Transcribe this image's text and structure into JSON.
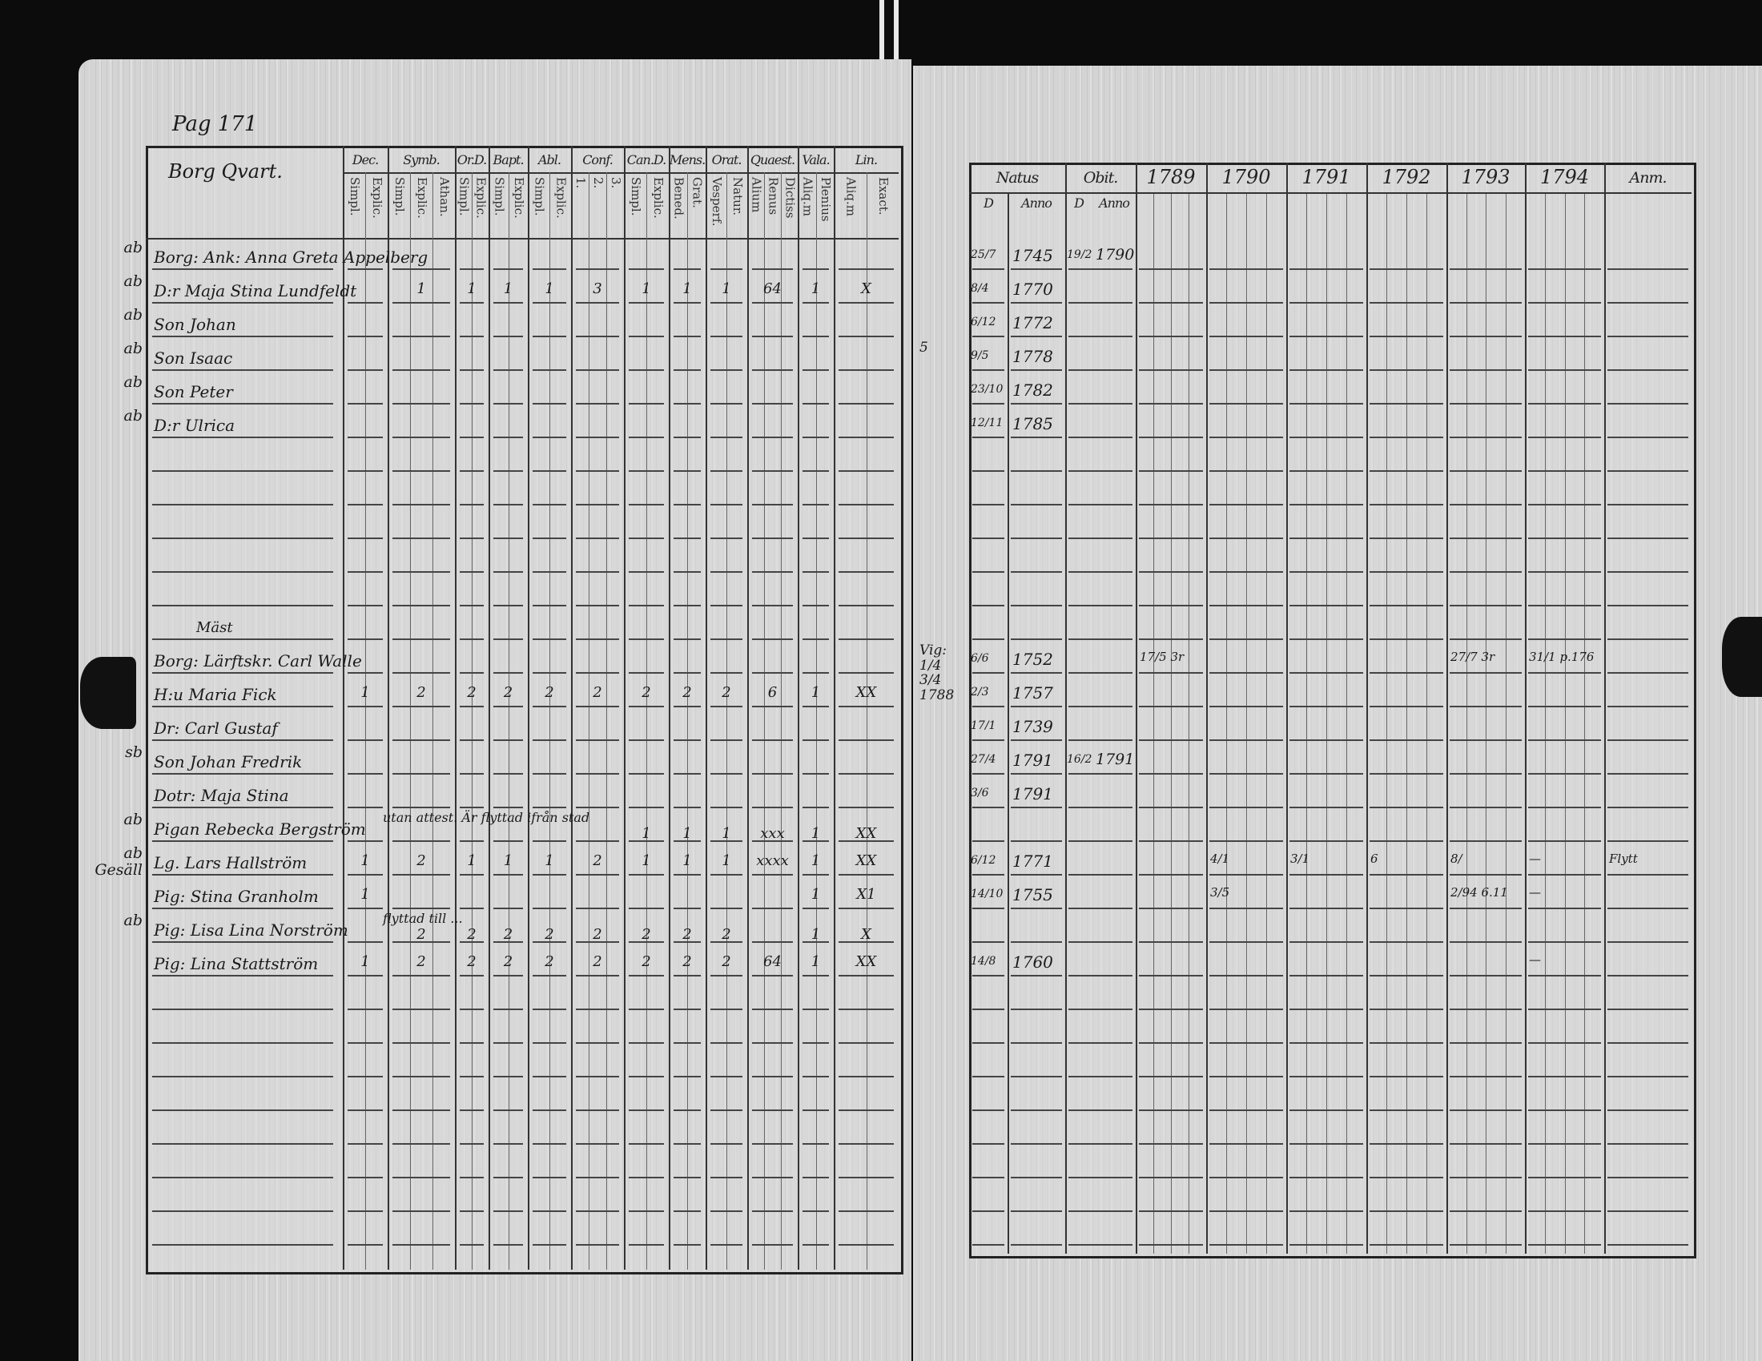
{
  "left_page": {
    "page_ref": "Pag 171",
    "quarter": "Borg Qvart.",
    "group_heading": "Mäst",
    "columns": [
      {
        "label": "Dec.",
        "sub": [
          "Simpl.",
          "Explic."
        ]
      },
      {
        "label": "Symb.",
        "sub": [
          "Simpl.",
          "Explic.",
          "Athan."
        ]
      },
      {
        "label": "Or.D.",
        "sub": [
          "Simpl.",
          "Explic."
        ]
      },
      {
        "label": "Bapt.",
        "sub": [
          "Simpl.",
          "Explic."
        ]
      },
      {
        "label": "Abl.",
        "sub": [
          "Simpl.",
          "Explic."
        ]
      },
      {
        "label": "Conf.",
        "sub": [
          "1.",
          "2.",
          "3."
        ]
      },
      {
        "label": "Can.D.",
        "sub": [
          "Simpl.",
          "Explic."
        ]
      },
      {
        "label": "Mens.",
        "sub": [
          "Bened.",
          "Grat."
        ]
      },
      {
        "label": "Orat.",
        "sub": [
          "Vesperf.",
          "Natur."
        ]
      },
      {
        "label": "Quaest.",
        "sub": [
          "Alium",
          "Renus",
          "Dictiss"
        ]
      },
      {
        "label": "Vala.",
        "sub": [
          "Aliq.m",
          "Plenius"
        ]
      },
      {
        "label": "Lin.",
        "sub": [
          "Aliq.m",
          "Exact."
        ]
      }
    ],
    "rows": [
      {
        "prefix": "ab",
        "name": "Borg: Ank: Anna Greta Appelberg",
        "marks": [
          "",
          "",
          "",
          "",
          "",
          "",
          "",
          "",
          "",
          "",
          "",
          ""
        ]
      },
      {
        "prefix": "ab",
        "name": "D:r Maja Stina Lundfeldt",
        "marks": [
          "",
          "1",
          "1",
          "1",
          "1",
          "3",
          "1",
          "1",
          "1",
          "64",
          "1",
          "X"
        ]
      },
      {
        "prefix": "ab",
        "name": "Son Johan",
        "marks": [
          "",
          "",
          "",
          "",
          "",
          "",
          "",
          "",
          "",
          "",
          "",
          ""
        ]
      },
      {
        "prefix": "ab",
        "name": "Son Isaac",
        "marks": [
          "",
          "",
          "",
          "",
          "",
          "",
          "",
          "",
          "",
          "",
          "",
          ""
        ]
      },
      {
        "prefix": "ab",
        "name": "Son Peter",
        "marks": [
          "",
          "",
          "",
          "",
          "",
          "",
          "",
          "",
          "",
          "",
          "",
          ""
        ]
      },
      {
        "prefix": "ab",
        "name": "D:r Ulrica",
        "marks": [
          "",
          "",
          "",
          "",
          "",
          "",
          "",
          "",
          "",
          "",
          "",
          ""
        ]
      },
      {
        "prefix": "",
        "name": "",
        "marks": []
      },
      {
        "prefix": "",
        "name": "",
        "marks": []
      },
      {
        "prefix": "",
        "name": "",
        "marks": []
      },
      {
        "prefix": "",
        "name": "",
        "marks": []
      },
      {
        "prefix": "",
        "name": "",
        "marks": []
      },
      {
        "prefix": "",
        "name": "",
        "marks": []
      },
      {
        "prefix": "",
        "name": "Borg: Lärftskr. Carl Walle",
        "marks": [
          "",
          "",
          "",
          "",
          "",
          "",
          "",
          "",
          "",
          "",
          "",
          ""
        ]
      },
      {
        "prefix": "",
        "name": "H:u Maria Fick",
        "marks": [
          "1",
          "2",
          "2",
          "2",
          "2",
          "2",
          "2",
          "2",
          "2",
          "6",
          "1",
          "XX"
        ]
      },
      {
        "prefix": "",
        "name": "Dr: Carl Gustaf",
        "marks": [
          "",
          "",
          "",
          "",
          "",
          "",
          "",
          "",
          "",
          "",
          "",
          ""
        ]
      },
      {
        "prefix": "sb",
        "name": "Son Johan Fredrik",
        "marks": [
          "",
          "",
          "",
          "",
          "",
          "",
          "",
          "",
          "",
          "",
          "",
          ""
        ]
      },
      {
        "prefix": "",
        "name": "Dotr: Maja Stina",
        "marks": [
          "",
          "",
          "",
          "",
          "",
          "",
          "",
          "",
          "",
          "",
          "",
          ""
        ]
      },
      {
        "prefix": "ab",
        "name": "Pigan Rebecka Bergström",
        "spill": "utan attest. Är flyttad ifrån stad",
        "marks": [
          "",
          "",
          "",
          "",
          "",
          "",
          "1",
          "1",
          "1",
          "xxx",
          "1",
          "XX"
        ]
      },
      {
        "prefix": "ab Gesäll",
        "name": "Lg. Lars Hallström",
        "marks": [
          "1",
          "2",
          "1",
          "1",
          "1",
          "2",
          "1",
          "1",
          "1",
          "xxxx",
          "1",
          "XX"
        ]
      },
      {
        "prefix": "",
        "name": "Pig: Stina Granholm",
        "marks": [
          "1",
          "",
          "",
          "",
          "",
          "",
          "",
          "",
          "",
          "",
          "1",
          "X1"
        ]
      },
      {
        "prefix": "ab",
        "name": "Pig: Lisa Lina Norström",
        "spill": "flyttad till ...",
        "marks": [
          "",
          "2",
          "2",
          "2",
          "2",
          "2",
          "2",
          "2",
          "2",
          "",
          "1",
          "X"
        ]
      },
      {
        "prefix": "",
        "name": "Pig: Lina Stattström",
        "marks": [
          "1",
          "2",
          "2",
          "2",
          "2",
          "2",
          "2",
          "2",
          "2",
          "64",
          "1",
          "XX"
        ]
      }
    ]
  },
  "right_page": {
    "headers": {
      "natus": "Natus",
      "obit": "Obit.",
      "natus_d": "D",
      "natus_anno": "Anno",
      "obit_d": "D",
      "obit_anno": "Anno",
      "last": "Anm."
    },
    "years": [
      "1789",
      "1790",
      "1791",
      "1792",
      "1793",
      "1794"
    ],
    "rows": [
      {
        "margin": "",
        "natus_d": "25/7",
        "natus_anno": "1745",
        "obit_d": "19/2",
        "obit_anno": "1790",
        "years": [
          "",
          "",
          "",
          "",
          "",
          ""
        ],
        "last": ""
      },
      {
        "margin": "",
        "natus_d": "8/4",
        "natus_anno": "1770",
        "obit_d": "",
        "obit_anno": "",
        "years": [
          "",
          "",
          "",
          "",
          "",
          ""
        ],
        "last": ""
      },
      {
        "margin": "",
        "natus_d": "6/12",
        "natus_anno": "1772",
        "obit_d": "",
        "obit_anno": "",
        "years": [
          "",
          "",
          "",
          "",
          "",
          ""
        ],
        "last": ""
      },
      {
        "margin": "5",
        "natus_d": "9/5",
        "natus_anno": "1778",
        "obit_d": "",
        "obit_anno": "",
        "years": [
          "",
          "",
          "",
          "",
          "",
          ""
        ],
        "last": ""
      },
      {
        "margin": "",
        "natus_d": "23/10",
        "natus_anno": "1782",
        "obit_d": "",
        "obit_anno": "",
        "years": [
          "",
          "",
          "",
          "",
          "",
          ""
        ],
        "last": ""
      },
      {
        "margin": "",
        "natus_d": "12/11",
        "natus_anno": "1785",
        "obit_d": "",
        "obit_anno": "",
        "years": [
          "",
          "",
          "",
          "",
          "",
          ""
        ],
        "last": ""
      },
      {
        "margin": "",
        "natus_d": "",
        "natus_anno": "",
        "obit_d": "",
        "obit_anno": "",
        "years": [
          "",
          "",
          "",
          "",
          "",
          ""
        ],
        "last": ""
      },
      {
        "margin": "",
        "natus_d": "",
        "natus_anno": "",
        "obit_d": "",
        "obit_anno": "",
        "years": [
          "",
          "",
          "",
          "",
          "",
          ""
        ],
        "last": ""
      },
      {
        "margin": "",
        "natus_d": "",
        "natus_anno": "",
        "obit_d": "",
        "obit_anno": "",
        "years": [
          "",
          "",
          "",
          "",
          "",
          ""
        ],
        "last": ""
      },
      {
        "margin": "",
        "natus_d": "",
        "natus_anno": "",
        "obit_d": "",
        "obit_anno": "",
        "years": [
          "",
          "",
          "",
          "",
          "",
          ""
        ],
        "last": ""
      },
      {
        "margin": "",
        "natus_d": "",
        "natus_anno": "",
        "obit_d": "",
        "obit_anno": "",
        "years": [
          "",
          "",
          "",
          "",
          "",
          ""
        ],
        "last": ""
      },
      {
        "margin": "",
        "natus_d": "",
        "natus_anno": "",
        "obit_d": "",
        "obit_anno": "",
        "years": [
          "",
          "",
          "",
          "",
          "",
          ""
        ],
        "last": ""
      },
      {
        "margin": "Vig: 1/4 3/4 1788",
        "natus_d": "6/6",
        "natus_anno": "1752",
        "obit_d": "",
        "obit_anno": "",
        "years": [
          "17/5 3r",
          "",
          "",
          "",
          "27/7 3r",
          "31/1 p.176"
        ],
        "last": ""
      },
      {
        "margin": "",
        "natus_d": "2/3",
        "natus_anno": "1757",
        "obit_d": "",
        "obit_anno": "",
        "years": [
          "",
          "",
          "",
          "",
          "",
          ""
        ],
        "last": ""
      },
      {
        "margin": "",
        "natus_d": "17/1",
        "natus_anno": "1739",
        "obit_d": "",
        "obit_anno": "",
        "years": [
          "",
          "",
          "",
          "",
          "",
          ""
        ],
        "last": ""
      },
      {
        "margin": "",
        "natus_d": "27/4",
        "natus_anno": "1791",
        "obit_d": "16/2",
        "obit_anno": "1791",
        "years": [
          "",
          "",
          "",
          "",
          "",
          ""
        ],
        "last": ""
      },
      {
        "margin": "",
        "natus_d": "3/6",
        "natus_anno": "1791",
        "obit_d": "",
        "obit_anno": "",
        "years": [
          "",
          "",
          "",
          "",
          "",
          ""
        ],
        "last": ""
      },
      {
        "margin": "",
        "natus_d": "",
        "natus_anno": "",
        "obit_d": "",
        "obit_anno": "",
        "years": [
          "",
          "",
          "",
          "",
          "",
          ""
        ],
        "last": ""
      },
      {
        "margin": "",
        "natus_d": "6/12",
        "natus_anno": "1771",
        "obit_d": "",
        "obit_anno": "",
        "years": [
          "",
          "4/1",
          "3/1",
          "6",
          "8/",
          "—"
        ],
        "last": "Flytt"
      },
      {
        "margin": "",
        "natus_d": "14/10",
        "natus_anno": "1755",
        "obit_d": "",
        "obit_anno": "",
        "years": [
          "",
          "3/5",
          "",
          "",
          "2/94 6.11",
          "—"
        ],
        "last": ""
      },
      {
        "margin": "",
        "natus_d": "",
        "natus_anno": "",
        "obit_d": "",
        "obit_anno": "",
        "years": [
          "",
          "",
          "",
          "",
          "",
          ""
        ],
        "last": ""
      },
      {
        "margin": "",
        "natus_d": "14/8",
        "natus_anno": "1760",
        "obit_d": "",
        "obit_anno": "",
        "years": [
          "",
          "",
          "",
          "",
          "",
          "—"
        ],
        "last": ""
      }
    ]
  }
}
